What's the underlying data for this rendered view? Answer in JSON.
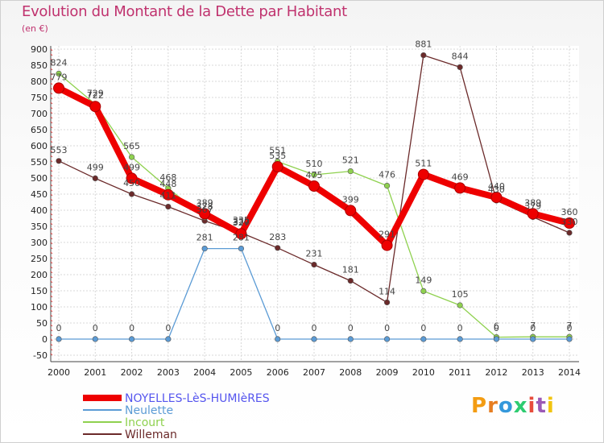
{
  "chart_data": {
    "type": "line",
    "title": "Evolution du Montant de la Dette par Habitant",
    "subtitle": "(en €)",
    "x": [
      "2000",
      "2001",
      "2002",
      "2003",
      "2004",
      "2005",
      "2006",
      "2007",
      "2008",
      "2009",
      "2010",
      "2011",
      "2012",
      "2013",
      "2014"
    ],
    "ylim": [
      -50,
      900
    ],
    "yticks": [
      -50,
      0,
      50,
      100,
      150,
      200,
      250,
      300,
      350,
      400,
      450,
      500,
      550,
      600,
      650,
      700,
      750,
      800,
      850,
      900
    ],
    "grid": true,
    "legend_position": "bottom-left",
    "series": [
      {
        "name": "NOYELLES-LèS-HUMIèRES",
        "color": "#ee0000",
        "values": [
          779,
          722,
          499,
          448,
          389,
          327,
          535,
          475,
          399,
          291,
          511,
          469,
          440,
          389,
          360
        ]
      },
      {
        "name": "Neulette",
        "color": "#5b9bd5",
        "values": [
          0,
          0,
          0,
          0,
          281,
          281,
          0,
          0,
          0,
          0,
          0,
          0,
          0,
          0,
          0
        ]
      },
      {
        "name": "Incourt",
        "color": "#8fd14f",
        "values": [
          824,
          729,
          565,
          468,
          378,
          335,
          551,
          510,
          521,
          476,
          149,
          105,
          6,
          7,
          7
        ]
      },
      {
        "name": "Willeman",
        "color": "#6b2a2a",
        "values": [
          553,
          499,
          450,
          411,
          367,
          330,
          283,
          231,
          181,
          114,
          881,
          844,
          430,
          379,
          330
        ]
      }
    ]
  },
  "logo_text": "Proxiti",
  "logo_colors": [
    "#f39c12",
    "#e67e22",
    "#3498db",
    "#2ecc71",
    "#e74c3c",
    "#9b59b6",
    "#f1c40f"
  ]
}
